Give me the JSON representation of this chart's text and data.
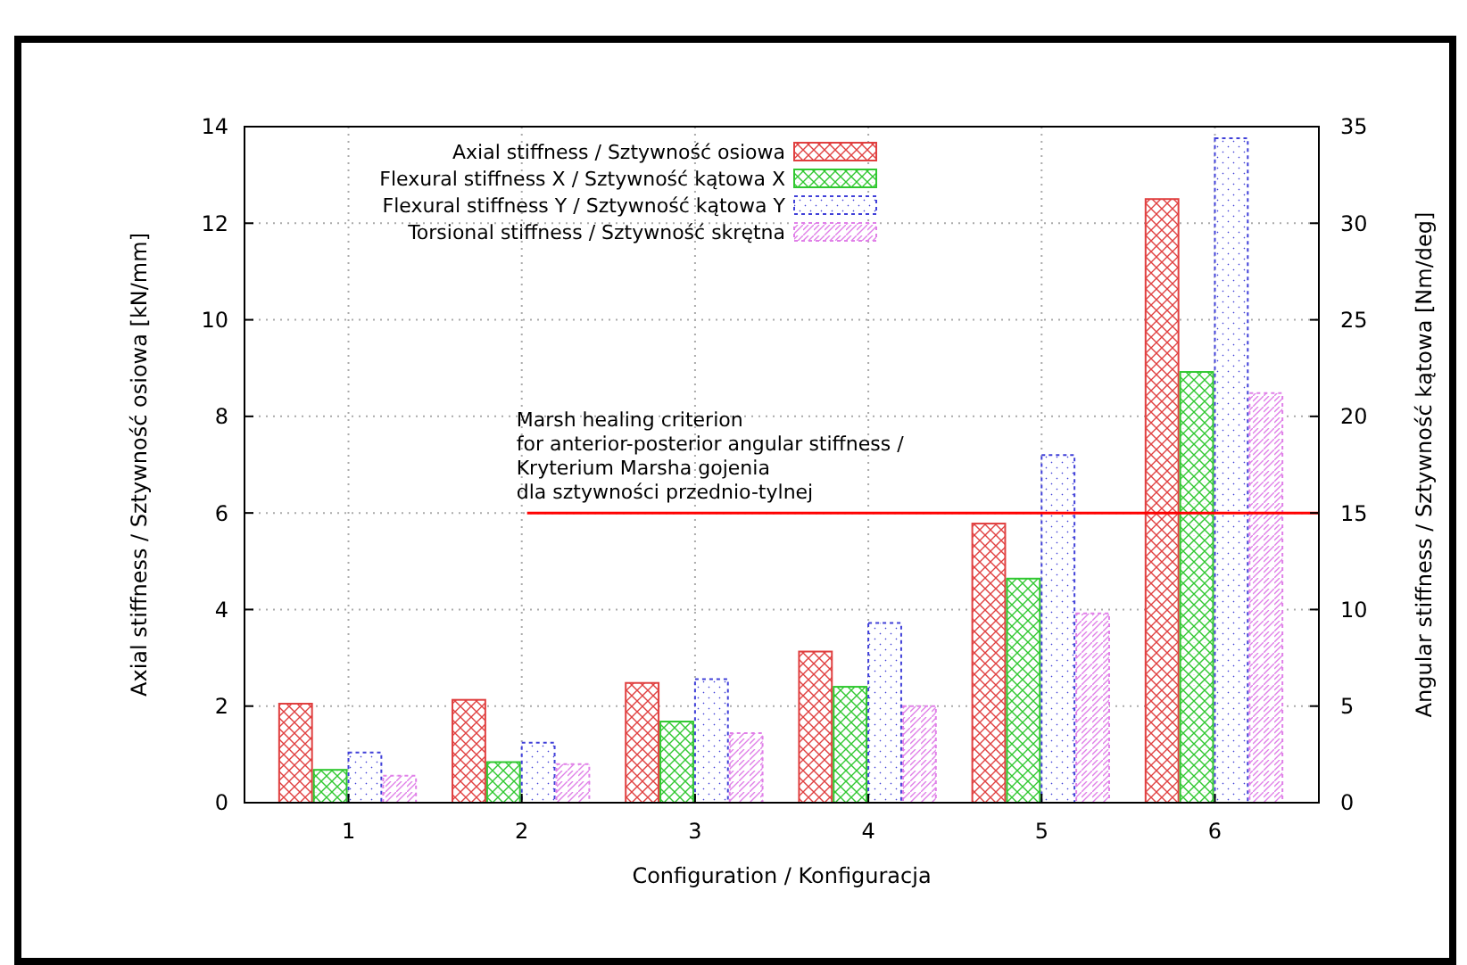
{
  "chart_data": {
    "type": "bar",
    "xlabel": "Configuration / Konfiguracja",
    "ylabel": "Axial stiffness / Sztywność osiowa [kN/mm]",
    "y2label": "Angular stiffness / Sztywność kątowa [Nm/deg]",
    "categories": [
      "1",
      "2",
      "3",
      "4",
      "5",
      "6"
    ],
    "ylim": [
      0,
      14
    ],
    "yticks": [
      0,
      2,
      4,
      6,
      8,
      10,
      12,
      14
    ],
    "y2lim": [
      0,
      35
    ],
    "y2ticks": [
      0,
      5,
      10,
      15,
      20,
      25,
      30,
      35
    ],
    "series": [
      {
        "name": "Axial stiffness / Sztywność osiowa",
        "color": "#e04040",
        "values": [
          2.05,
          2.13,
          2.48,
          3.13,
          5.78,
          12.5
        ]
      },
      {
        "name": "Flexural stiffness X / Sztywność kątowa X",
        "color": "#30c830",
        "axis": "y2",
        "values": [
          1.7,
          2.1,
          4.2,
          6.0,
          11.6,
          22.3
        ]
      },
      {
        "name": "Flexural stiffness Y / Sztywność kątowa Y",
        "color": "#4040d8",
        "axis": "y2",
        "values": [
          2.6,
          3.1,
          6.4,
          9.3,
          18.0,
          34.4
        ]
      },
      {
        "name": "Torsional stiffness / Sztywność skrętna",
        "color": "#e080e8",
        "axis": "y2",
        "values": [
          1.4,
          2.0,
          3.6,
          5.0,
          9.8,
          21.2
        ]
      }
    ],
    "ref_lines": [
      {
        "axis": "y2",
        "value": 15,
        "color": "#ff0000",
        "line_style": "solid",
        "label": "Marsh healing criterion\nfor anterior-posterior angular stiffness /\nKryterium Marsha gojenia\ndla sztywności przednio-tylnej"
      }
    ],
    "grid": true,
    "legend": "top left"
  }
}
